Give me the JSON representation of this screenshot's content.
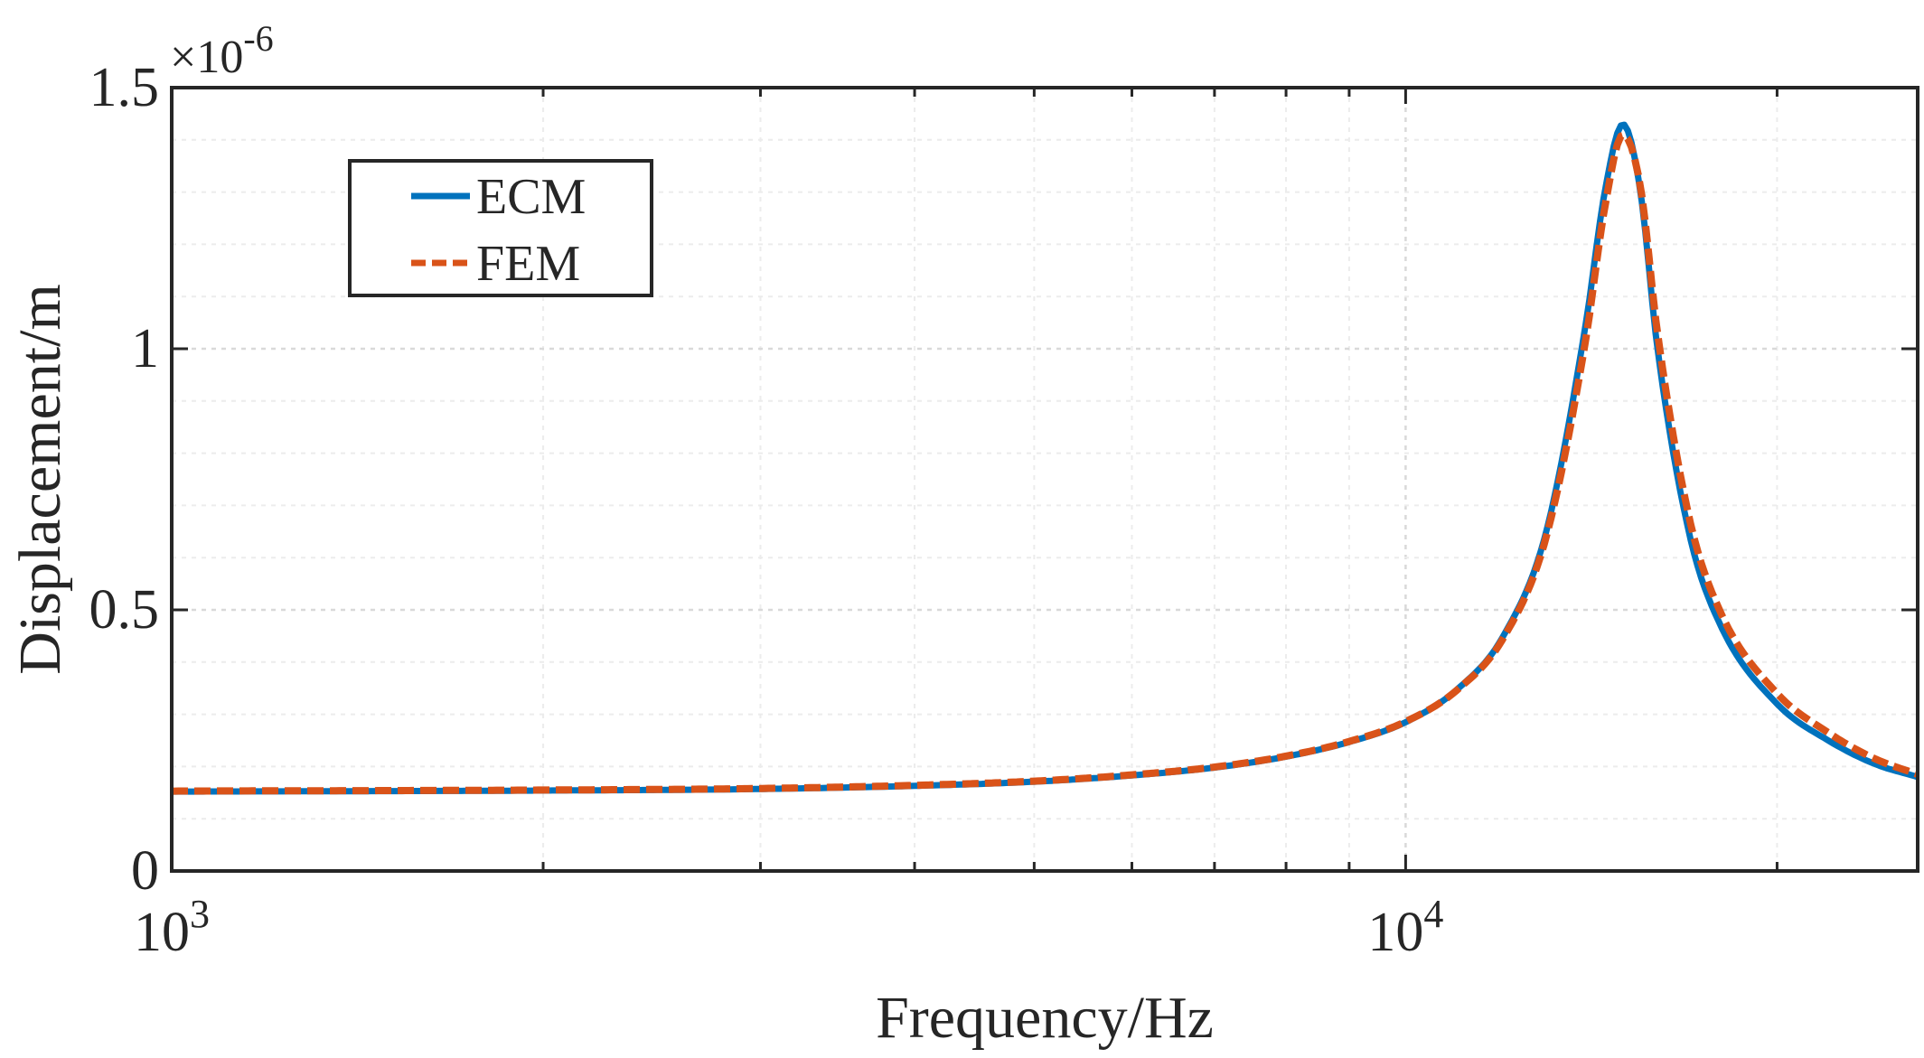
{
  "chart_data": {
    "type": "line",
    "title": "",
    "xlabel": "Frequency/Hz",
    "ylabel": "Displacement/m",
    "x_scale": "log",
    "xlim": [
      1000,
      26000
    ],
    "ylim": [
      0,
      1.5
    ],
    "y_multiplier": {
      "base": "×10",
      "exponent": "-6"
    },
    "x_ticks": [
      {
        "value": 1000,
        "base": "10",
        "exp": "3"
      },
      {
        "value": 10000,
        "base": "10",
        "exp": "4"
      }
    ],
    "y_ticks": [
      {
        "value": 0,
        "label": "0"
      },
      {
        "value": 0.5,
        "label": "0.5"
      },
      {
        "value": 1,
        "label": "1"
      },
      {
        "value": 1.5,
        "label": "1.5"
      }
    ],
    "grid": true,
    "legend_position": "top-left",
    "series": [
      {
        "name": "ECM",
        "color": "#0072BD",
        "style": "solid",
        "x": [
          1000,
          2000,
          3000,
          4000,
          5000,
          6000,
          7000,
          8000,
          9000,
          10000,
          11000,
          12000,
          13000,
          14000,
          14500,
          15000,
          15500,
          16000,
          17000,
          18000,
          20000,
          22000,
          24000,
          26000
        ],
        "y": [
          0.152,
          0.154,
          0.157,
          0.163,
          0.171,
          0.183,
          0.198,
          0.219,
          0.247,
          0.285,
          0.347,
          0.45,
          0.65,
          1.05,
          1.3,
          1.43,
          1.3,
          1.0,
          0.64,
          0.47,
          0.32,
          0.25,
          0.205,
          0.18
        ]
      },
      {
        "name": "FEM",
        "color": "#D95319",
        "style": "dashed",
        "x": [
          1000,
          2000,
          3000,
          4000,
          5000,
          6000,
          7000,
          8000,
          9000,
          10000,
          11000,
          12000,
          13000,
          14000,
          14500,
          15000,
          15500,
          16000,
          17000,
          18000,
          20000,
          22000,
          24000,
          26000
        ],
        "y": [
          0.153,
          0.155,
          0.158,
          0.164,
          0.172,
          0.184,
          0.199,
          0.22,
          0.248,
          0.286,
          0.346,
          0.446,
          0.64,
          1.02,
          1.27,
          1.41,
          1.31,
          1.03,
          0.67,
          0.495,
          0.34,
          0.265,
          0.215,
          0.185
        ]
      }
    ]
  }
}
